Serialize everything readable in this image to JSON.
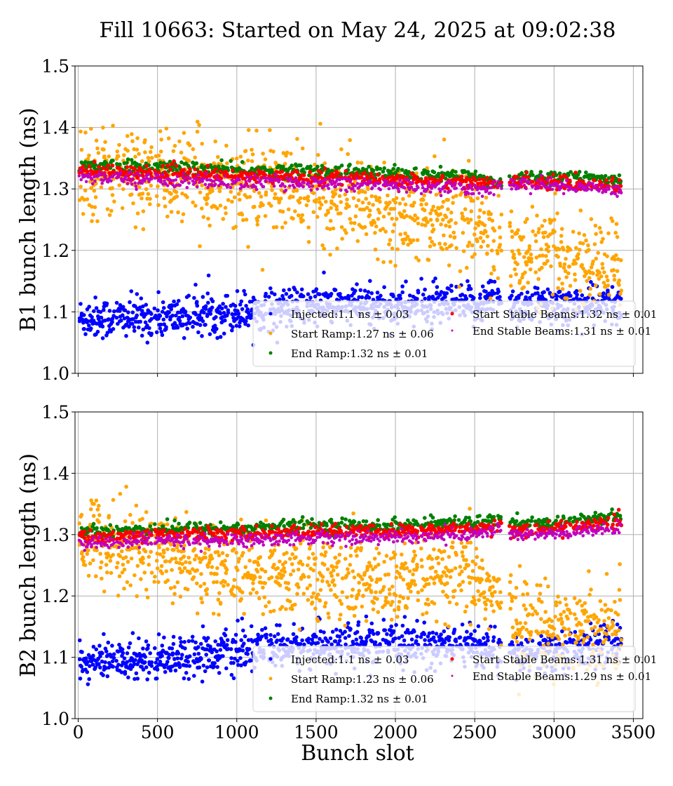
{
  "title": "Fill 10663: Started on May 24, 2025 at 09:02:38",
  "xlabel": "Bunch slot",
  "colors": {
    "injected": "#0000ff",
    "start_ramp": "#ffa500",
    "end_ramp": "#008000",
    "start_stable": "#ff0000",
    "end_stable": "#c000c0",
    "grid": "#b0b0b0",
    "legend_bg": "#ffffff"
  },
  "chart_data": [
    {
      "type": "scatter",
      "ylabel": "B1 bunch length (ns)",
      "xlim": [
        -20,
        3560
      ],
      "ylim": [
        1.0,
        1.5
      ],
      "xticks": [
        "0",
        "500",
        "1000",
        "1500",
        "2000",
        "2500",
        "3000",
        "3500"
      ],
      "yticks": [
        "1.0",
        "1.1",
        "1.2",
        "1.3",
        "1.4",
        "1.5"
      ],
      "x_tick_labels_shown": false,
      "grid": true,
      "legend_placement": "lower-right",
      "series": [
        {
          "name": "Injected:1.1 ns ± 0.03",
          "color_key": "injected",
          "mean": 1.1,
          "std": 0.03
        },
        {
          "name": "Start Ramp:1.27 ns ± 0.06",
          "color_key": "start_ramp",
          "mean": 1.27,
          "std": 0.06
        },
        {
          "name": "End Ramp:1.32 ns ± 0.01",
          "color_key": "end_ramp",
          "mean": 1.32,
          "std": 0.01
        },
        {
          "name": "Start Stable Beams:1.32 ns ± 0.01",
          "color_key": "start_stable",
          "mean": 1.32,
          "std": 0.01
        },
        {
          "name": "End Stable Beams:1.31 ns ± 0.01",
          "color_key": "end_stable",
          "mean": 1.31,
          "std": 0.01
        }
      ],
      "trend_points": {
        "bunch_slots": [
          0,
          500,
          1000,
          1500,
          2000,
          2500,
          2650,
          2750,
          3000,
          3420
        ],
        "injected": [
          1.09,
          1.09,
          1.1,
          1.11,
          1.11,
          1.11,
          1.13,
          1.11,
          1.11,
          1.11
        ],
        "start_ramp": [
          1.33,
          1.32,
          1.31,
          1.29,
          1.27,
          1.25,
          1.22,
          1.19,
          1.19,
          1.17
        ],
        "end_ramp": [
          1.34,
          1.335,
          1.33,
          1.33,
          1.325,
          1.32,
          1.31,
          1.32,
          1.32,
          1.315
        ],
        "start_stable": [
          1.33,
          1.325,
          1.32,
          1.32,
          1.315,
          1.31,
          1.305,
          1.315,
          1.31,
          1.305
        ],
        "end_stable": [
          1.32,
          1.315,
          1.31,
          1.31,
          1.305,
          1.3,
          1.3,
          1.31,
          1.305,
          1.3
        ]
      }
    },
    {
      "type": "scatter",
      "ylabel": "B2 bunch length (ns)",
      "xlim": [
        -20,
        3560
      ],
      "ylim": [
        1.0,
        1.5
      ],
      "xticks": [
        "0",
        "500",
        "1000",
        "1500",
        "2000",
        "2500",
        "3000",
        "3500"
      ],
      "yticks": [
        "1.0",
        "1.1",
        "1.2",
        "1.3",
        "1.4",
        "1.5"
      ],
      "x_tick_labels_shown": true,
      "grid": true,
      "legend_placement": "lower-right",
      "series": [
        {
          "name": "Injected:1.1 ns ± 0.03",
          "color_key": "injected",
          "mean": 1.1,
          "std": 0.03
        },
        {
          "name": "Start Ramp:1.23 ns ± 0.06",
          "color_key": "start_ramp",
          "mean": 1.23,
          "std": 0.06
        },
        {
          "name": "End Ramp:1.32 ns ± 0.01",
          "color_key": "end_ramp",
          "mean": 1.32,
          "std": 0.01
        },
        {
          "name": "Start Stable Beams:1.31 ns ± 0.01",
          "color_key": "start_stable",
          "mean": 1.31,
          "std": 0.01
        },
        {
          "name": "End Stable Beams:1.29 ns ± 0.01",
          "color_key": "end_stable",
          "mean": 1.29,
          "std": 0.01
        }
      ],
      "trend_points": {
        "bunch_slots": [
          0,
          500,
          1000,
          1500,
          2000,
          2500,
          2650,
          2750,
          3000,
          3420
        ],
        "injected": [
          1.09,
          1.1,
          1.11,
          1.12,
          1.12,
          1.12,
          1.11,
          1.1,
          1.11,
          1.12
        ],
        "start_ramp": [
          1.3,
          1.27,
          1.24,
          1.23,
          1.22,
          1.23,
          1.19,
          1.16,
          1.15,
          1.15
        ],
        "end_ramp": [
          1.305,
          1.31,
          1.31,
          1.315,
          1.315,
          1.32,
          1.325,
          1.315,
          1.32,
          1.33
        ],
        "start_stable": [
          1.295,
          1.3,
          1.3,
          1.305,
          1.305,
          1.31,
          1.315,
          1.305,
          1.31,
          1.32
        ],
        "end_stable": [
          1.285,
          1.29,
          1.29,
          1.295,
          1.295,
          1.3,
          1.31,
          1.3,
          1.3,
          1.31
        ]
      }
    }
  ]
}
